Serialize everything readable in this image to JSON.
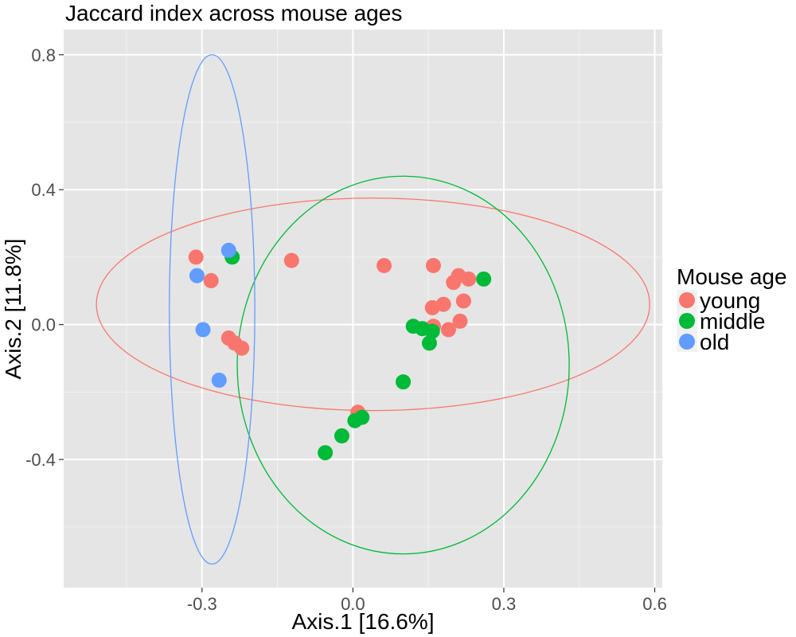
{
  "chart_data": {
    "type": "scatter",
    "title": "Jaccard index across mouse ages",
    "xlabel": "Axis.1   [16.6%]",
    "ylabel": "Axis.2   [11.8%]",
    "xlim": [
      -0.575,
      0.615
    ],
    "ylim": [
      -0.78,
      0.875
    ],
    "x_ticks": [
      -0.3,
      0.0,
      0.3,
      0.6
    ],
    "x_tick_labels": [
      "-0.3",
      "0.0",
      "0.3",
      "0.6"
    ],
    "y_ticks": [
      -0.4,
      0.0,
      0.4,
      0.8
    ],
    "y_tick_labels": [
      "-0.4",
      "0.0",
      "0.4",
      "0.8"
    ],
    "grid": true,
    "legend": {
      "title": "Mouse age",
      "position": "right"
    },
    "series": [
      {
        "name": "young",
        "color": "#F8766D",
        "points": [
          [
            -0.312,
            0.2
          ],
          [
            -0.282,
            0.13
          ],
          [
            -0.122,
            0.19
          ],
          [
            0.062,
            0.175
          ],
          [
            0.16,
            0.175
          ],
          [
            -0.247,
            -0.04
          ],
          [
            -0.235,
            -0.055
          ],
          [
            -0.221,
            -0.07
          ],
          [
            0.2,
            0.125
          ],
          [
            0.21,
            0.145
          ],
          [
            0.23,
            0.135
          ],
          [
            0.158,
            0.05
          ],
          [
            0.18,
            0.06
          ],
          [
            0.22,
            0.07
          ],
          [
            0.16,
            -0.005
          ],
          [
            0.19,
            -0.015
          ],
          [
            0.213,
            0.01
          ],
          [
            0.01,
            -0.26
          ]
        ]
      },
      {
        "name": "middle",
        "color": "#00BA38",
        "points": [
          [
            -0.24,
            0.2
          ],
          [
            0.26,
            0.135
          ],
          [
            0.12,
            -0.005
          ],
          [
            0.138,
            -0.012
          ],
          [
            0.158,
            -0.02
          ],
          [
            0.152,
            -0.055
          ],
          [
            0.1,
            -0.17
          ],
          [
            0.018,
            -0.275
          ],
          [
            0.004,
            -0.285
          ],
          [
            -0.022,
            -0.33
          ],
          [
            -0.055,
            -0.38
          ]
        ]
      },
      {
        "name": "old",
        "color": "#619CFF",
        "points": [
          [
            -0.247,
            0.22
          ],
          [
            -0.31,
            0.145
          ],
          [
            -0.298,
            -0.015
          ],
          [
            -0.266,
            -0.165
          ]
        ]
      }
    ],
    "ellipses": [
      {
        "series": "young",
        "color": "#F8766D",
        "cx": 0.04,
        "cy": 0.06,
        "rx": 0.55,
        "ry": 0.315,
        "rotation_deg": 0
      },
      {
        "series": "middle",
        "color": "#00BA38",
        "cx": 0.1,
        "cy": -0.12,
        "rx": 0.33,
        "ry": 0.56,
        "rotation_deg": 0
      },
      {
        "series": "old",
        "color": "#619CFF",
        "cx": -0.28,
        "cy": 0.045,
        "rx": 0.085,
        "ry": 0.755,
        "rotation_deg": 0
      }
    ]
  }
}
